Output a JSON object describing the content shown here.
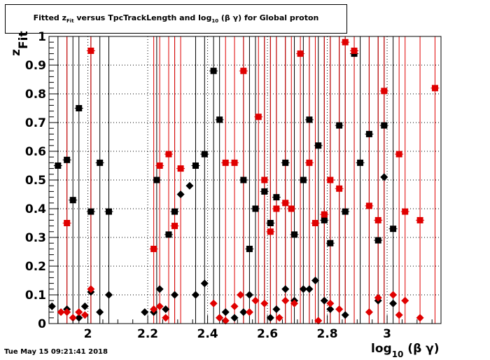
{
  "title": {
    "pre": "Fitted  z",
    "pre_sub": "Fit",
    "mid": "  versus TpcTrackLength and log",
    "mid_sub": "10",
    "post": " (β γ) for Global proton"
  },
  "footer_date": "Tue May 15 09:21:41 2018",
  "colors": {
    "black_series": "#000000",
    "red_series": "#e00000",
    "grid": "#000000"
  },
  "chart_data": {
    "type": "scatter",
    "title": "Fitted  z_Fit  versus TpcTrackLength and log_10 (β γ) for Global proton",
    "xlabel": {
      "main": "log",
      "sub": "10",
      "tail": " (β γ)"
    },
    "ylabel": {
      "main": "z",
      "sub": "Fit"
    },
    "xlim": [
      1.87,
      3.18
    ],
    "ylim": [
      0,
      1
    ],
    "x_ticks": [
      2,
      2.2,
      2.4,
      2.6,
      2.8,
      3
    ],
    "x_tick_labels": [
      "2",
      "2.2",
      "2.4",
      "2.6",
      "2.8",
      "3"
    ],
    "y_ticks": [
      0,
      0.1,
      0.2,
      0.3,
      0.4,
      0.5,
      0.6,
      0.7,
      0.8,
      0.9,
      1
    ],
    "y_tick_labels": [
      "0",
      "0.1",
      "0.2",
      "0.3",
      "0.4",
      "0.5",
      "0.6",
      "0.7",
      "0.8",
      "0.9",
      "1"
    ],
    "grid": true,
    "series": [
      {
        "color": "black",
        "square": [
          [
            1.9,
            0.55
          ],
          [
            1.93,
            0.57
          ],
          [
            1.95,
            0.43
          ],
          [
            1.97,
            0.75
          ],
          [
            2.01,
            0.39
          ],
          [
            2.04,
            0.56
          ],
          [
            2.07,
            0.39
          ],
          [
            2.23,
            0.5
          ],
          [
            2.27,
            0.31
          ],
          [
            2.29,
            0.39
          ],
          [
            2.36,
            0.55
          ],
          [
            2.39,
            0.59
          ],
          [
            2.42,
            0.88
          ],
          [
            2.44,
            0.71
          ],
          [
            2.52,
            0.5
          ],
          [
            2.54,
            0.26
          ],
          [
            2.56,
            0.4
          ],
          [
            2.59,
            0.46
          ],
          [
            2.61,
            0.35
          ],
          [
            2.63,
            0.44
          ],
          [
            2.66,
            0.56
          ],
          [
            2.69,
            0.31
          ],
          [
            2.72,
            0.5
          ],
          [
            2.74,
            0.71
          ],
          [
            2.77,
            0.62
          ],
          [
            2.79,
            0.36
          ],
          [
            2.81,
            0.28
          ],
          [
            2.84,
            0.69
          ],
          [
            2.86,
            0.39
          ],
          [
            2.89,
            0.94
          ],
          [
            2.91,
            0.56
          ],
          [
            2.94,
            0.66
          ],
          [
            2.97,
            0.29
          ],
          [
            2.99,
            0.69
          ],
          [
            3.02,
            0.33
          ]
        ],
        "diamond": [
          [
            1.88,
            0.06
          ],
          [
            1.93,
            0.05
          ],
          [
            1.97,
            0.02
          ],
          [
            1.99,
            0.06
          ],
          [
            2.01,
            0.11
          ],
          [
            2.04,
            0.04
          ],
          [
            2.07,
            0.1
          ],
          [
            2.19,
            0.04
          ],
          [
            2.22,
            0.04
          ],
          [
            2.24,
            0.12
          ],
          [
            2.26,
            0.05
          ],
          [
            2.29,
            0.1
          ],
          [
            2.31,
            0.45
          ],
          [
            2.34,
            0.48
          ],
          [
            2.36,
            0.1
          ],
          [
            2.39,
            0.14
          ],
          [
            2.44,
            0.02
          ],
          [
            2.46,
            0.04
          ],
          [
            2.49,
            0.02
          ],
          [
            2.52,
            0.04
          ],
          [
            2.54,
            0.1
          ],
          [
            2.61,
            0.02
          ],
          [
            2.63,
            0.05
          ],
          [
            2.66,
            0.12
          ],
          [
            2.69,
            0.08
          ],
          [
            2.72,
            0.12
          ],
          [
            2.74,
            0.12
          ],
          [
            2.76,
            0.15
          ],
          [
            2.79,
            0.08
          ],
          [
            2.81,
            0.05
          ],
          [
            2.86,
            0.03
          ],
          [
            2.97,
            0.08
          ],
          [
            2.99,
            0.51
          ],
          [
            3.02,
            0.07
          ]
        ]
      },
      {
        "color": "red",
        "square": [
          [
            1.93,
            0.35
          ],
          [
            2.01,
            0.95
          ],
          [
            2.22,
            0.26
          ],
          [
            2.24,
            0.55
          ],
          [
            2.27,
            0.59
          ],
          [
            2.29,
            0.34
          ],
          [
            2.31,
            0.54
          ],
          [
            2.46,
            0.56
          ],
          [
            2.49,
            0.56
          ],
          [
            2.52,
            0.88
          ],
          [
            2.57,
            0.72
          ],
          [
            2.59,
            0.5
          ],
          [
            2.61,
            0.32
          ],
          [
            2.63,
            0.4
          ],
          [
            2.66,
            0.42
          ],
          [
            2.68,
            0.4
          ],
          [
            2.71,
            0.94
          ],
          [
            2.74,
            0.56
          ],
          [
            2.76,
            0.35
          ],
          [
            2.79,
            0.38
          ],
          [
            2.81,
            0.5
          ],
          [
            2.84,
            0.47
          ],
          [
            2.86,
            0.98
          ],
          [
            2.89,
            0.95
          ],
          [
            2.94,
            0.41
          ],
          [
            2.97,
            0.36
          ],
          [
            2.99,
            0.81
          ],
          [
            3.04,
            0.59
          ],
          [
            3.06,
            0.39
          ],
          [
            3.11,
            0.36
          ],
          [
            3.16,
            0.82
          ]
        ],
        "diamond": [
          [
            1.91,
            0.04
          ],
          [
            1.93,
            0.04
          ],
          [
            1.95,
            0.02
          ],
          [
            1.97,
            0.04
          ],
          [
            1.99,
            0.03
          ],
          [
            2.01,
            0.12
          ],
          [
            2.22,
            0.05
          ],
          [
            2.24,
            0.06
          ],
          [
            2.26,
            0.02
          ],
          [
            2.42,
            0.07
          ],
          [
            2.44,
            0.02
          ],
          [
            2.46,
            0.01
          ],
          [
            2.49,
            0.06
          ],
          [
            2.51,
            0.1
          ],
          [
            2.54,
            0.04
          ],
          [
            2.56,
            0.08
          ],
          [
            2.59,
            0.07
          ],
          [
            2.64,
            0.02
          ],
          [
            2.66,
            0.08
          ],
          [
            2.69,
            0.07
          ],
          [
            2.77,
            0.01
          ],
          [
            2.81,
            0.07
          ],
          [
            2.84,
            0.05
          ],
          [
            2.94,
            0.04
          ],
          [
            2.97,
            0.09
          ],
          [
            3.02,
            0.1
          ],
          [
            3.04,
            0.03
          ],
          [
            3.06,
            0.08
          ],
          [
            3.11,
            0.02
          ]
        ]
      }
    ]
  }
}
